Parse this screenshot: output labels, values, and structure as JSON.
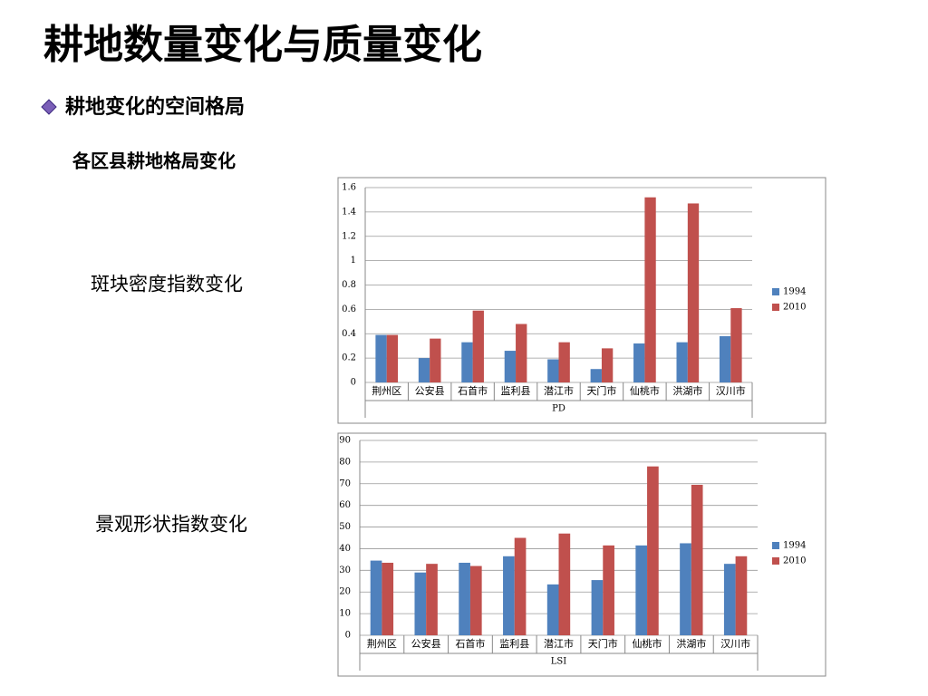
{
  "title": "耕地数量变化与质量变化",
  "subtitle": "耕地变化的空间格局",
  "heading": "各区县耕地格局变化",
  "chart_data": [
    {
      "type": "bar",
      "annotation": "斑块密度指数变化",
      "x_label": "PD",
      "categories": [
        "荆州区",
        "公安县",
        "石首市",
        "监利县",
        "潜江市",
        "天门市",
        "仙桃市",
        "洪湖市",
        "汉川市"
      ],
      "series": [
        {
          "name": "1994",
          "color": "#4f81bd",
          "values": [
            0.39,
            0.2,
            0.33,
            0.26,
            0.19,
            0.11,
            0.32,
            0.33,
            0.38
          ]
        },
        {
          "name": "2010",
          "color": "#c0504d",
          "values": [
            0.39,
            0.36,
            0.59,
            0.48,
            0.33,
            0.28,
            1.52,
            1.47,
            0.61
          ]
        }
      ],
      "ylim": [
        0,
        1.6
      ],
      "yticks": [
        0,
        0.2,
        0.4,
        0.6,
        0.8,
        1,
        1.2,
        1.4,
        1.6
      ],
      "grid": true,
      "legend": "right"
    },
    {
      "type": "bar",
      "annotation": "景观形状指数变化",
      "x_label": "LSI",
      "categories": [
        "荆州区",
        "公安县",
        "石首市",
        "监利县",
        "潜江市",
        "天门市",
        "仙桃市",
        "洪湖市",
        "汉川市"
      ],
      "series": [
        {
          "name": "1994",
          "color": "#4f81bd",
          "values": [
            34.5,
            29,
            33.5,
            36.5,
            23.5,
            25.5,
            41.5,
            42.5,
            33
          ]
        },
        {
          "name": "2010",
          "color": "#c0504d",
          "values": [
            33.5,
            33,
            32,
            45,
            47,
            41.5,
            78,
            69.5,
            36.5
          ]
        }
      ],
      "ylim": [
        0,
        90
      ],
      "yticks": [
        0,
        10,
        20,
        30,
        40,
        50,
        60,
        70,
        80,
        90
      ],
      "grid": true,
      "legend": "right"
    }
  ]
}
